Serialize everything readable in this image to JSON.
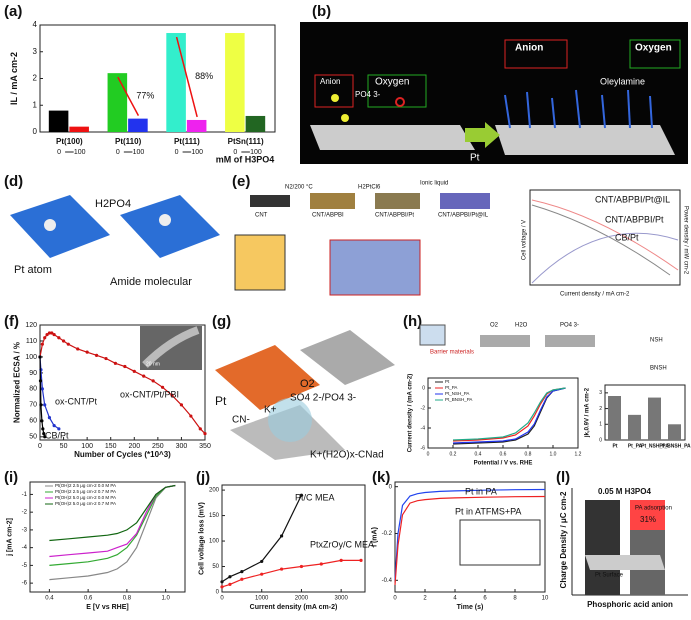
{
  "labels": [
    "(a)",
    "(b)",
    "(d)",
    "(e)",
    "(f)",
    "(g)",
    "(h)",
    "(i)",
    "(j)",
    "(k)",
    "(l)"
  ],
  "b": {
    "texts": [
      "Anion",
      "Oxygen",
      "PO4 3-",
      "Oleylamine",
      "Anion",
      "Oxygen",
      "Pt"
    ]
  },
  "d": {
    "texts": [
      "H2PO4",
      "Pt atom",
      "Amide molecular"
    ]
  },
  "e": {
    "texts": [
      "CNT",
      "N2/200 °C",
      "CNT/ABPBI",
      "H2PtCl6",
      "CNT/ABPBI/Pt",
      "Ionic liquid",
      "CNT/ABPBI/Pt@IL",
      "CNT/ABPBI/Pt@IL",
      "CNT/ABPBI/Pt",
      "CB/Pt",
      "Current density / mA cm-2",
      "Cell voltage / V",
      "Power density / mW cm-2"
    ]
  },
  "f": {
    "texts": [
      "20 nm"
    ]
  },
  "g": {
    "texts": [
      "Pt",
      "O2",
      "SO4 2-/PO4 3-",
      "K+",
      "CN-",
      "K+(H2O)x-CNad"
    ]
  },
  "h": {
    "texts": [
      "Barrier materials",
      "O2",
      "H2O",
      "PO4 3-",
      "NSH",
      "BNSH"
    ]
  },
  "l": {
    "texts": [
      "0.05 M H3PO4",
      "Charge Density / μC cm-2",
      "Phosphoric acid anion",
      "PA adsorption",
      "31%",
      "Pt Surface"
    ]
  },
  "chart_data": [
    {
      "type": "bar",
      "categories": [
        "Pt(100)",
        "Pt(110)",
        "Pt(111)",
        "PtSn(111)"
      ],
      "series": [
        {
          "name": "0",
          "colors": [
            "#000000",
            "#22cc22",
            "#33eecc",
            "#eeff44"
          ],
          "values": [
            0.8,
            2.2,
            3.7,
            3.7
          ]
        },
        {
          "name": "100",
          "colors": [
            "#ee1111",
            "#2233ee",
            "#ee22ee",
            "#226622"
          ],
          "values": [
            0.2,
            0.5,
            0.45,
            0.6
          ]
        }
      ],
      "annotations": [
        "77%",
        "88%"
      ],
      "xlabel": "mM of H3PO4",
      "ylabel": "IL / mA cm-2",
      "ylim": [
        0,
        4
      ],
      "yticks": [
        0,
        1,
        2,
        3,
        4
      ]
    },
    {
      "type": "line",
      "xlabel": "Number of Cycles (*10^3)",
      "ylabel": "Normalized ECSA / %",
      "xlim": [
        0,
        350
      ],
      "xticks": [
        0,
        50,
        100,
        150,
        200,
        250,
        300,
        350
      ],
      "ylim": [
        48,
        120
      ],
      "yticks": [
        50,
        60,
        70,
        80,
        90,
        100,
        110,
        120
      ],
      "series": [
        {
          "name": "ox-CNT/Pt/PBI",
          "color": "#cc1111",
          "x": [
            0,
            5,
            10,
            15,
            20,
            25,
            30,
            40,
            50,
            60,
            80,
            100,
            120,
            140,
            160,
            180,
            200,
            220,
            240,
            260,
            280,
            300,
            320,
            340,
            350
          ],
          "values": [
            100,
            108,
            112,
            114,
            115,
            115,
            114,
            112,
            110,
            108,
            105,
            103,
            101,
            99,
            96,
            94,
            91,
            88,
            85,
            81,
            76,
            70,
            63,
            55,
            52
          ]
        },
        {
          "name": "ox-CNT/Pt",
          "color": "#2233cc",
          "x": [
            0,
            2,
            5,
            10,
            20,
            30,
            40
          ],
          "values": [
            100,
            92,
            80,
            70,
            62,
            57,
            55
          ]
        },
        {
          "name": "CB/Pt",
          "color": "#000000",
          "x": [
            0,
            1,
            2,
            4,
            6,
            8,
            10
          ],
          "values": [
            100,
            85,
            70,
            60,
            55,
            52,
            50
          ]
        }
      ]
    },
    {
      "type": "line",
      "xlabel": "E [V vs RHE]",
      "ylabel": "j [mA cm-2]",
      "xlim": [
        0.3,
        1.1
      ],
      "xticks": [
        0.4,
        0.6,
        0.8,
        {
          "value": 1,
          "label": "1.0"
        }
      ],
      "ylim": [
        -6.5,
        -0.3
      ],
      "yticks": [
        -1,
        -2,
        -3,
        -4,
        -5,
        -6
      ],
      "series": [
        {
          "name": "Pt(OH)2 2.5 μg cm-2 0.0 M PA",
          "color": "#888888",
          "x": [
            0.4,
            0.5,
            0.6,
            0.7,
            0.75,
            0.8,
            0.85,
            0.9,
            0.95,
            1.0,
            1.05
          ],
          "values": [
            -5.8,
            -5.7,
            -5.6,
            -5.4,
            -5.2,
            -4.8,
            -4,
            -2.6,
            -1.2,
            -0.6,
            -0.5
          ]
        },
        {
          "name": "Pt(OH)2 2.5 μg cm-2 0.7 M PA",
          "color": "#33aa33",
          "x": [
            0.4,
            0.5,
            0.6,
            0.7,
            0.75,
            0.8,
            0.85,
            0.9,
            0.95,
            1.0,
            1.05
          ],
          "values": [
            -5.0,
            -4.9,
            -4.8,
            -4.6,
            -4.4,
            -4.0,
            -3.3,
            -2.2,
            -1.1,
            -0.6,
            -0.5
          ]
        },
        {
          "name": "Pt(OH)2 5.0 μg cm-2 0.0 M PA",
          "color": "#cc22cc",
          "x": [
            0.4,
            0.5,
            0.6,
            0.7,
            0.75,
            0.8,
            0.85,
            0.9,
            0.95,
            1.0,
            1.05
          ],
          "values": [
            -4.5,
            -4.4,
            -4.3,
            -4.2,
            -4.0,
            -3.8,
            -3.2,
            -2.0,
            -1.0,
            -0.6,
            -0.5
          ]
        },
        {
          "name": "Pt(OH)2 5.0 μg cm-2 0.7 M PA",
          "color": "#116611",
          "x": [
            0.4,
            0.5,
            0.6,
            0.7,
            0.75,
            0.8,
            0.85,
            0.9,
            0.95,
            1.0,
            1.05
          ],
          "values": [
            -3.6,
            -3.5,
            -3.4,
            -3.3,
            -3.2,
            -3.0,
            -2.6,
            -1.8,
            -1.0,
            -0.6,
            -0.5
          ]
        }
      ]
    },
    {
      "type": "line",
      "xlabel": "Current density (mA cm-2)",
      "ylabel": "Cell voltage loss (mV)",
      "xlim": [
        0,
        3600
      ],
      "xticks": [
        0,
        1000,
        2000,
        3000
      ],
      "ylim": [
        0,
        210
      ],
      "yticks": [
        0,
        50,
        100,
        150,
        200
      ],
      "series": [
        {
          "name": "Pt/C MEA",
          "color": "#111111",
          "x": [
            0,
            200,
            500,
            1000,
            1500,
            2000
          ],
          "values": [
            20,
            30,
            40,
            60,
            110,
            190
          ]
        },
        {
          "name": "PtxZrOy/C MEA",
          "color": "#ee2222",
          "x": [
            0,
            200,
            500,
            1000,
            1500,
            2000,
            2500,
            3000,
            3500
          ],
          "values": [
            10,
            15,
            25,
            35,
            45,
            50,
            55,
            62,
            62
          ]
        }
      ]
    },
    {
      "type": "line",
      "xlabel": "Time (s)",
      "ylabel": "I (mA)",
      "xlim": [
        0,
        10
      ],
      "xticks": [
        0,
        2,
        4,
        6,
        8,
        10
      ],
      "ylim": [
        -0.45,
        0.02
      ],
      "yticks": [
        -0.4,
        -0.2,
        0
      ],
      "series": [
        {
          "name": "Pt in PA",
          "color": "#2244ee",
          "x": [
            0,
            0.2,
            0.5,
            1,
            1.5,
            2,
            3,
            4,
            6,
            8,
            10
          ],
          "values": [
            -0.4,
            -0.2,
            -0.08,
            -0.04,
            -0.03,
            -0.025,
            -0.02,
            -0.018,
            -0.015,
            -0.013,
            -0.012
          ]
        },
        {
          "name": "Pt in ATFMS+PA",
          "color": "#ee2222",
          "x": [
            0,
            0.2,
            0.5,
            1,
            1.5,
            2,
            3,
            4,
            6,
            8,
            10
          ],
          "values": [
            -0.42,
            -0.25,
            -0.12,
            -0.07,
            -0.06,
            -0.055,
            -0.05,
            -0.048,
            -0.045,
            -0.043,
            -0.042
          ]
        }
      ]
    },
    {
      "type": "bar",
      "categories": [
        "Pt",
        "Pt_PA",
        "Pt_NSH_PA",
        "Pt_BNSH_PA"
      ],
      "series": [
        {
          "name": "jk,0.9V",
          "colors": [
            "#777777",
            "#777777",
            "#777777",
            "#777777"
          ],
          "values": [
            2.8,
            1.6,
            2.7,
            1.0
          ]
        }
      ],
      "ylabel": "jk,0.9V / mA cm-2",
      "ylim": [
        0,
        3.5
      ],
      "yticks": [
        0,
        1,
        2,
        3
      ]
    },
    {
      "type": "line",
      "xlabel": "Potential / V vs. RHE",
      "ylabel": "Current density / (mA cm-2)",
      "xlim": [
        0,
        1.2
      ],
      "xticks": [
        0,
        0.2,
        0.4,
        0.6,
        0.8,
        {
          "value": 1,
          "label": "1.0"
        },
        1.2
      ],
      "ylim": [
        -6,
        1
      ],
      "yticks": [
        -6,
        -4,
        -2,
        0
      ],
      "series": [
        {
          "name": "Pt",
          "color": "#222222",
          "x": [
            0.2,
            0.4,
            0.6,
            0.7,
            0.8,
            0.85,
            0.9,
            0.95,
            1.0,
            1.1
          ],
          "values": [
            -5.6,
            -5.5,
            -5.4,
            -5.2,
            -4.6,
            -3.8,
            -2.4,
            -1.0,
            -0.3,
            0
          ]
        },
        {
          "name": "Pt_PA",
          "color": "#ee2222",
          "x": [
            0.2,
            0.4,
            0.6,
            0.7,
            0.8,
            0.85,
            0.9,
            0.95,
            1.0,
            1.1
          ],
          "values": [
            -5.3,
            -5.2,
            -5.0,
            -4.7,
            -3.8,
            -2.8,
            -1.6,
            -0.6,
            -0.2,
            0
          ]
        },
        {
          "name": "Pt_NSH_PA",
          "color": "#2233ee",
          "x": [
            0.2,
            0.4,
            0.6,
            0.7,
            0.8,
            0.85,
            0.9,
            0.95,
            1.0,
            1.1
          ],
          "values": [
            -5.5,
            -5.4,
            -5.3,
            -5.1,
            -4.4,
            -3.6,
            -2.2,
            -0.9,
            -0.3,
            0
          ]
        },
        {
          "name": "Pt_BNSH_PA",
          "color": "#22aa88",
          "x": [
            0.2,
            0.4,
            0.6,
            0.7,
            0.8,
            0.85,
            0.9,
            0.95,
            1.0,
            1.1
          ],
          "values": [
            -5.2,
            -5.1,
            -4.9,
            -4.5,
            -3.5,
            -2.5,
            -1.4,
            -0.5,
            -0.2,
            0
          ]
        }
      ]
    }
  ]
}
